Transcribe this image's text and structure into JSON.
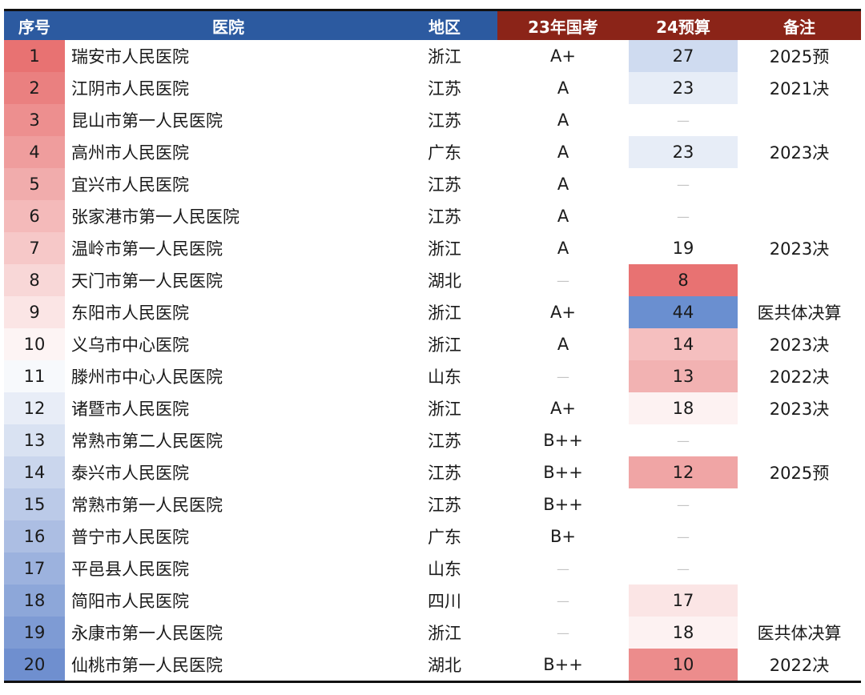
{
  "headers": [
    "序号",
    "医院",
    "地区",
    "23年国考",
    "24预算",
    "备注"
  ],
  "colors": {
    "header_blue": "#2c5aa0",
    "header_red": "#8b2418",
    "rank_gradient": [
      "#e87272",
      "#6f8fcf"
    ],
    "budget_low": "#e87272",
    "budget_mid": "#ffffff",
    "budget_high": "#6a8fd0"
  },
  "rows": [
    {
      "rank": "1",
      "hospital": "瑞安市人民医院",
      "region": "浙江",
      "kaohe": "A+",
      "budget": "27",
      "note": "2025预"
    },
    {
      "rank": "2",
      "hospital": "江阴市人民医院",
      "region": "江苏",
      "kaohe": "A",
      "budget": "23",
      "note": "2021决"
    },
    {
      "rank": "3",
      "hospital": "昆山市第一人民医院",
      "region": "江苏",
      "kaohe": "A",
      "budget": "—",
      "note": ""
    },
    {
      "rank": "4",
      "hospital": "高州市人民医院",
      "region": "广东",
      "kaohe": "A",
      "budget": "23",
      "note": "2023决"
    },
    {
      "rank": "5",
      "hospital": "宜兴市人民医院",
      "region": "江苏",
      "kaohe": "A",
      "budget": "—",
      "note": ""
    },
    {
      "rank": "6",
      "hospital": "张家港市第一人民医院",
      "region": "江苏",
      "kaohe": "A",
      "budget": "—",
      "note": ""
    },
    {
      "rank": "7",
      "hospital": "温岭市第一人民医院",
      "region": "浙江",
      "kaohe": "A",
      "budget": "19",
      "note": "2023决"
    },
    {
      "rank": "8",
      "hospital": "天门市第一人民医院",
      "region": "湖北",
      "kaohe": "—",
      "budget": "8",
      "note": ""
    },
    {
      "rank": "9",
      "hospital": "东阳市人民医院",
      "region": "浙江",
      "kaohe": "A+",
      "budget": "44",
      "note": "医共体决算"
    },
    {
      "rank": "10",
      "hospital": "义乌市中心医院",
      "region": "浙江",
      "kaohe": "A",
      "budget": "14",
      "note": "2023决"
    },
    {
      "rank": "11",
      "hospital": "滕州市中心人民医院",
      "region": "山东",
      "kaohe": "—",
      "budget": "13",
      "note": "2022决"
    },
    {
      "rank": "12",
      "hospital": "诸暨市人民医院",
      "region": "浙江",
      "kaohe": "A+",
      "budget": "18",
      "note": "2023决"
    },
    {
      "rank": "13",
      "hospital": "常熟市第二人民医院",
      "region": "江苏",
      "kaohe": "B++",
      "budget": "—",
      "note": ""
    },
    {
      "rank": "14",
      "hospital": "泰兴市人民医院",
      "region": "江苏",
      "kaohe": "B++",
      "budget": "12",
      "note": "2025预"
    },
    {
      "rank": "15",
      "hospital": "常熟市第一人民医院",
      "region": "江苏",
      "kaohe": "B++",
      "budget": "—",
      "note": ""
    },
    {
      "rank": "16",
      "hospital": "普宁市人民医院",
      "region": "广东",
      "kaohe": "B+",
      "budget": "—",
      "note": ""
    },
    {
      "rank": "17",
      "hospital": "平邑县人民医院",
      "region": "山东",
      "kaohe": "—",
      "budget": "—",
      "note": ""
    },
    {
      "rank": "18",
      "hospital": "简阳市人民医院",
      "region": "四川",
      "kaohe": "—",
      "budget": "17",
      "note": ""
    },
    {
      "rank": "19",
      "hospital": "永康市第一人民医院",
      "region": "浙江",
      "kaohe": "—",
      "budget": "18",
      "note": "医共体决算"
    },
    {
      "rank": "20",
      "hospital": "仙桃市第一人民医院",
      "region": "湖北",
      "kaohe": "B++",
      "budget": "10",
      "note": "2022决"
    }
  ]
}
